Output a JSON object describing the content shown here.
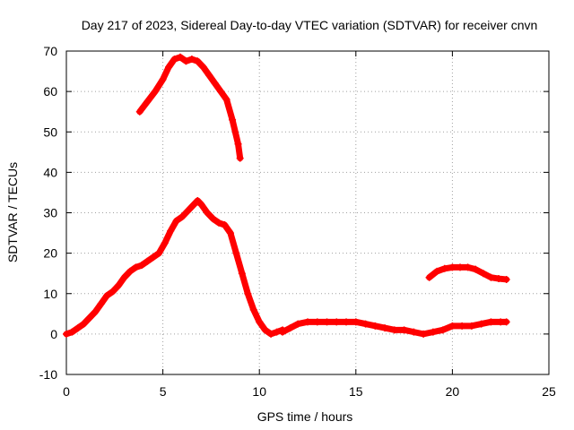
{
  "chart_data": {
    "type": "line",
    "title": "Day 217 of 2023, Sidereal Day-to-day VTEC variation (SDTVAR) for receiver cnvn",
    "xlabel": "GPS time / hours",
    "ylabel": "SDTVAR / TECUs",
    "xlim": [
      0,
      25
    ],
    "ylim": [
      -10,
      70
    ],
    "x_ticks": [
      0,
      5,
      10,
      15,
      20,
      25
    ],
    "y_ticks": [
      -10,
      0,
      10,
      20,
      30,
      40,
      50,
      60,
      70
    ],
    "grid": true,
    "marker": "+",
    "series_color": "#ff0000",
    "series": [
      {
        "name": "segment-1",
        "x": [
          0.0,
          0.3,
          0.6,
          0.9,
          1.2,
          1.5,
          1.8,
          2.1,
          2.4,
          2.7,
          3.0,
          3.3,
          3.6,
          3.9,
          4.2,
          4.5,
          4.8,
          5.1,
          5.4,
          5.7,
          6.0,
          6.3,
          6.6,
          6.8,
          7.0,
          7.3,
          7.6,
          7.9,
          8.2,
          8.5,
          8.8,
          9.1,
          9.4,
          9.7,
          10.0,
          10.3,
          10.6,
          10.9,
          11.2
        ],
        "y": [
          0.0,
          0.5,
          1.5,
          2.5,
          4.0,
          5.5,
          7.5,
          9.5,
          10.5,
          12.0,
          14.0,
          15.5,
          16.5,
          17.0,
          18.0,
          19.0,
          20.0,
          22.5,
          25.5,
          28.0,
          29.0,
          30.5,
          32.0,
          33.0,
          32.0,
          30.0,
          28.5,
          27.5,
          27.0,
          25.0,
          20.0,
          15.0,
          10.0,
          6.0,
          3.0,
          1.0,
          0.0,
          0.5,
          1.0
        ]
      },
      {
        "name": "segment-2",
        "x": [
          11.2,
          11.6,
          12.0,
          12.5,
          13.0,
          13.5,
          14.0,
          14.5,
          15.0,
          15.5,
          16.0,
          16.5,
          17.0,
          17.5,
          18.0,
          18.5,
          19.0,
          19.5,
          20.0,
          20.5,
          21.0,
          21.5,
          22.0,
          22.5,
          22.8
        ],
        "y": [
          0.5,
          1.5,
          2.5,
          3.0,
          3.0,
          3.0,
          3.0,
          3.0,
          3.0,
          2.5,
          2.0,
          1.5,
          1.0,
          1.0,
          0.5,
          0.0,
          0.5,
          1.0,
          2.0,
          2.0,
          2.0,
          2.5,
          3.0,
          3.0,
          3.0
        ]
      },
      {
        "name": "segment-3",
        "x": [
          3.8,
          4.2,
          4.6,
          5.0,
          5.3,
          5.6,
          5.9,
          6.2,
          6.5,
          6.8,
          7.1,
          7.4,
          7.7,
          8.0,
          8.3,
          8.6,
          8.9,
          9.0
        ],
        "y": [
          55.0,
          57.5,
          60.0,
          63.0,
          66.0,
          68.0,
          68.5,
          67.5,
          68.0,
          67.5,
          66.0,
          64.0,
          62.0,
          60.0,
          58.0,
          53.0,
          47.0,
          43.5
        ]
      },
      {
        "name": "segment-4",
        "x": [
          18.8,
          19.2,
          19.6,
          20.0,
          20.4,
          20.8,
          21.2,
          21.6,
          22.0,
          22.4,
          22.8
        ],
        "y": [
          14.0,
          15.5,
          16.2,
          16.5,
          16.5,
          16.5,
          16.0,
          15.0,
          14.0,
          13.7,
          13.5
        ]
      }
    ]
  }
}
